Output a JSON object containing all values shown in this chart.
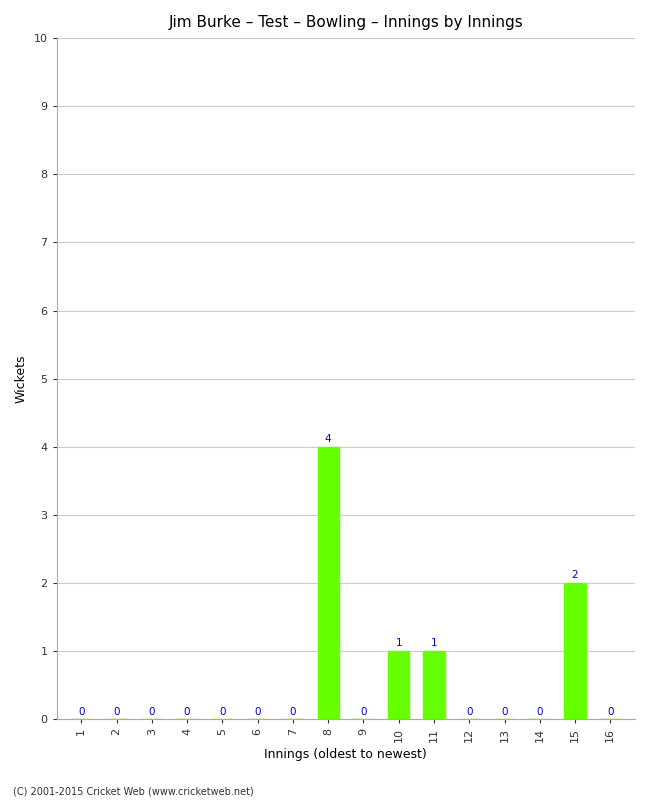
{
  "title": "Jim Burke – Test – Bowling – Innings by Innings",
  "xlabel": "Innings (oldest to newest)",
  "ylabel": "Wickets",
  "innings": [
    1,
    2,
    3,
    4,
    5,
    6,
    7,
    8,
    9,
    10,
    11,
    12,
    13,
    14,
    15,
    16
  ],
  "wickets": [
    0,
    0,
    0,
    0,
    0,
    0,
    0,
    4,
    0,
    1,
    1,
    0,
    0,
    0,
    2,
    0
  ],
  "bar_color": "#66ff00",
  "label_color": "#0000cc",
  "ylim": [
    0,
    10
  ],
  "yticks": [
    0,
    1,
    2,
    3,
    4,
    5,
    6,
    7,
    8,
    9,
    10
  ],
  "background_color": "#ffffff",
  "grid_color": "#cccccc",
  "footer": "(C) 2001-2015 Cricket Web (www.cricketweb.net)",
  "title_fontsize": 11,
  "axis_label_fontsize": 9,
  "tick_fontsize": 8,
  "annotation_fontsize": 7.5
}
